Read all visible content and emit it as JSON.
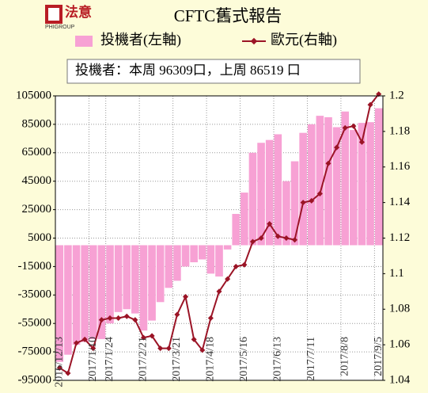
{
  "header": {
    "logo_text": "法意",
    "logo_sub": "PHIGROUP"
  },
  "chart_data": {
    "type": "bar_line",
    "title": "CFTC舊式報告",
    "annotation": "投機者：本周 96309口，上周 86519 口",
    "categories": [
      "2016/12/13",
      null,
      null,
      null,
      "2017/1/10",
      null,
      "2017/1/24",
      null,
      null,
      null,
      "2017/2/21",
      null,
      null,
      null,
      "2017/3/21",
      null,
      null,
      null,
      "2017/4/18",
      null,
      null,
      null,
      "2017/5/16",
      null,
      null,
      null,
      "2017/6/13",
      null,
      null,
      null,
      "2017/7/11",
      null,
      null,
      null,
      "2017/8/8",
      null,
      null,
      null,
      "2017/9/5"
    ],
    "series": [
      {
        "name": "投機者(左軸)",
        "color": "#f7a1d4",
        "axis": "y",
        "values": [
          -82000,
          -77000,
          -70000,
          -68000,
          -66000,
          -66000,
          -55000,
          -47000,
          -45000,
          -48000,
          -60000,
          -53000,
          -40000,
          -30000,
          -25000,
          -15000,
          -12000,
          -10000,
          -20000,
          -22000,
          -3000,
          22000,
          37000,
          65000,
          72000,
          74000,
          78000,
          45000,
          59000,
          79000,
          85000,
          91000,
          90000,
          83000,
          94000,
          81000,
          86000,
          86519,
          96309
        ]
      },
      {
        "name": "歐元(右軸)",
        "color": "#9b1426",
        "axis": "y2",
        "values": [
          1.047,
          1.044,
          1.061,
          1.063,
          1.058,
          1.074,
          1.075,
          1.075,
          1.076,
          1.074,
          1.064,
          1.065,
          1.058,
          1.058,
          1.077,
          1.087,
          1.063,
          1.057,
          1.075,
          1.09,
          1.097,
          1.104,
          1.105,
          1.118,
          1.12,
          1.128,
          1.121,
          1.12,
          1.119,
          1.14,
          1.141,
          1.145,
          1.162,
          1.171,
          1.182,
          1.183,
          1.174,
          1.195,
          1.201
        ]
      }
    ],
    "ylim": [
      -95000,
      105000
    ],
    "yticks": [
      105000,
      85000,
      65000,
      45000,
      25000,
      5000,
      -15000,
      -35000,
      -55000,
      -75000,
      -95000
    ],
    "y2lim": [
      1.04,
      1.2
    ],
    "y2ticks": [
      1.2,
      1.18,
      1.16,
      1.14,
      1.12,
      1.1,
      1.08,
      1.06,
      1.04
    ],
    "grid": true
  }
}
